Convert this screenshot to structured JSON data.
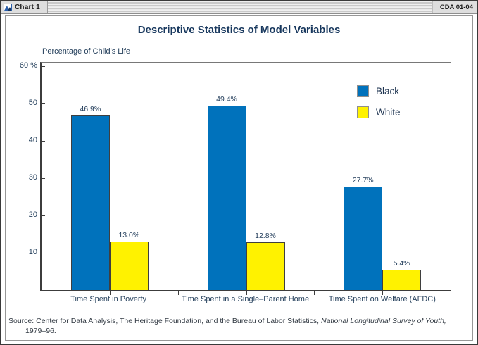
{
  "window": {
    "tab_label": "Chart 1",
    "doc_code": "CDA 01-04"
  },
  "chart_data": {
    "type": "bar",
    "title": "Descriptive Statistics of Model Variables",
    "axis_caption": "Percentage of Child's Life",
    "categories": [
      "Time Spent in Poverty",
      "Time Spent in a Single–Parent Home",
      "Time Spent on Welfare (AFDC)"
    ],
    "series": [
      {
        "name": "Black",
        "color": "#0072bc",
        "values": [
          46.9,
          49.4,
          27.7
        ],
        "labels": [
          "46.9%",
          "49.4%",
          "27.7%"
        ]
      },
      {
        "name": "White",
        "color": "#fff200",
        "values": [
          13.0,
          12.8,
          5.4
        ],
        "labels": [
          "13.0%",
          "12.8%",
          "5.4%"
        ]
      }
    ],
    "y_ticks": [
      {
        "value": 60,
        "label": "60 %"
      },
      {
        "value": 50,
        "label": "50"
      },
      {
        "value": 40,
        "label": "40"
      },
      {
        "value": 30,
        "label": "30"
      },
      {
        "value": 20,
        "label": "20"
      },
      {
        "value": 10,
        "label": "10"
      }
    ],
    "ylim": [
      0,
      61
    ],
    "grid": false,
    "legend_position": "top-right"
  },
  "source": {
    "prefix": "Source:",
    "text": " Center for Data Analysis, The Heritage Foundation, and the Bureau of Labor Statistics,  ",
    "italic": "National Longitudinal Survey of Youth,",
    "line2": "1979–96."
  }
}
